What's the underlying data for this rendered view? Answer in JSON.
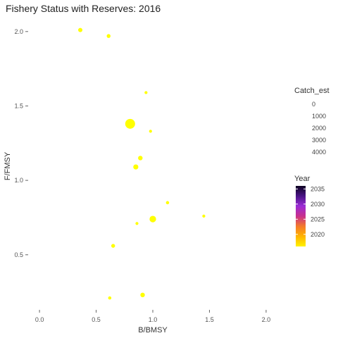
{
  "chart_data": {
    "type": "scatter",
    "title": "Fishery Status with Reserves: 2016",
    "xlabel": "B/BMSY",
    "ylabel": "F/FMSY",
    "xlim": [
      -0.1,
      2.1
    ],
    "ylim": [
      0.13,
      2.07
    ],
    "xticks": [
      0.0,
      0.5,
      1.0,
      1.5,
      2.0
    ],
    "xtick_labels": [
      "0.0",
      "0.5",
      "1.0",
      "1.5",
      "2.0"
    ],
    "yticks": [
      0.5,
      1.0,
      1.5,
      2.0
    ],
    "ytick_labels": [
      "0.5",
      "1.0",
      "1.5",
      "2.0"
    ],
    "grid": false,
    "points": [
      {
        "x": 0.36,
        "y": 2.01,
        "catch": 300,
        "year": 2016
      },
      {
        "x": 0.61,
        "y": 1.97,
        "catch": 200,
        "year": 2016
      },
      {
        "x": 0.94,
        "y": 1.59,
        "catch": 50,
        "year": 2016
      },
      {
        "x": 0.8,
        "y": 1.38,
        "catch": 4000,
        "year": 2016
      },
      {
        "x": 0.98,
        "y": 1.33,
        "catch": 50,
        "year": 2016
      },
      {
        "x": 0.89,
        "y": 1.15,
        "catch": 400,
        "year": 2016
      },
      {
        "x": 0.85,
        "y": 1.09,
        "catch": 600,
        "year": 2016
      },
      {
        "x": 1.13,
        "y": 0.85,
        "catch": 80,
        "year": 2016
      },
      {
        "x": 1.45,
        "y": 0.76,
        "catch": 50,
        "year": 2016
      },
      {
        "x": 1.0,
        "y": 0.74,
        "catch": 1300,
        "year": 2016
      },
      {
        "x": 0.86,
        "y": 0.71,
        "catch": 50,
        "year": 2016
      },
      {
        "x": 0.65,
        "y": 0.56,
        "catch": 200,
        "year": 2016
      },
      {
        "x": 0.91,
        "y": 0.23,
        "catch": 400,
        "year": 2016
      },
      {
        "x": 0.62,
        "y": 0.21,
        "catch": 80,
        "year": 2016
      }
    ],
    "size_legend": {
      "title": "Catch_est",
      "breaks": [
        0,
        1000,
        2000,
        3000,
        4000
      ],
      "labels": [
        "0",
        "1000",
        "2000",
        "3000",
        "4000"
      ]
    },
    "color_legend": {
      "title": "Year",
      "min": 2016,
      "max": 2036,
      "breaks": [
        2020,
        2025,
        2030,
        2035
      ],
      "labels": [
        "2020",
        "2025",
        "2030",
        "2035"
      ],
      "colors": [
        "#fff200",
        "#ffb400",
        "#f47a2a",
        "#c8308c",
        "#9b2bd6",
        "#4a1486",
        "#0d0221"
      ]
    },
    "point_color": "#ffff00"
  }
}
